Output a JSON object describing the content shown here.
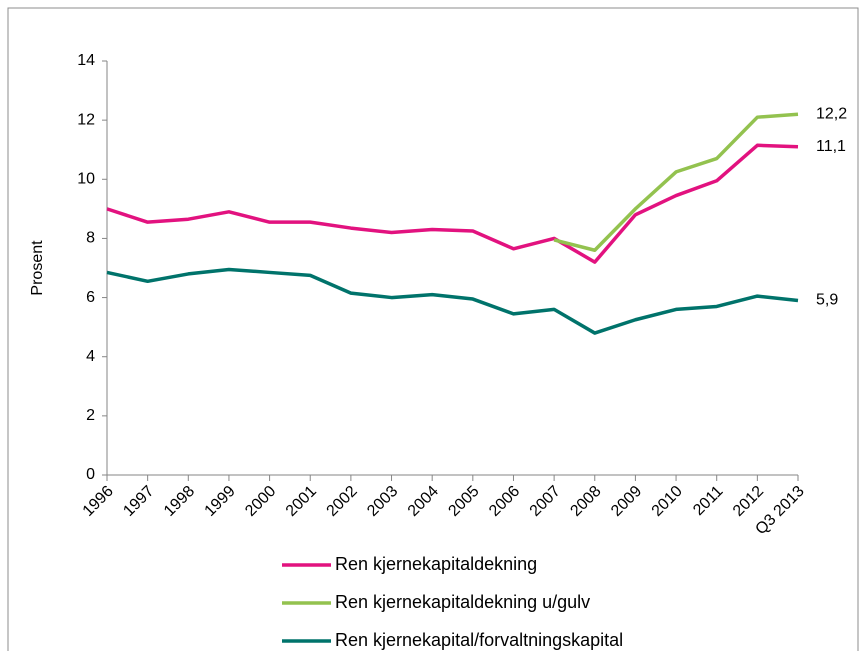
{
  "chart_data": {
    "type": "line",
    "y_label": "Prosent",
    "categories": [
      "1996",
      "1997",
      "1998",
      "1999",
      "2000",
      "2001",
      "2002",
      "2003",
      "2004",
      "2005",
      "2006",
      "2007",
      "2008",
      "2009",
      "2010",
      "2011",
      "2012",
      "Q3 2013"
    ],
    "series": [
      {
        "name": "Ren kjernekapitaldekning",
        "color": "#e2127f",
        "values": [
          9.0,
          8.55,
          8.65,
          8.9,
          8.55,
          8.55,
          8.35,
          8.2,
          8.3,
          8.25,
          7.65,
          8.0,
          7.2,
          8.8,
          9.45,
          9.95,
          11.15,
          11.1
        ],
        "value_labels": [
          null,
          null,
          null,
          null,
          null,
          null,
          null,
          null,
          null,
          null,
          null,
          null,
          null,
          null,
          null,
          null,
          null,
          "11,1"
        ]
      },
      {
        "name": "Ren kjernekapitaldekning u/gulv",
        "color": "#93c24f",
        "values": [
          null,
          null,
          null,
          null,
          null,
          null,
          null,
          null,
          null,
          null,
          null,
          7.95,
          7.6,
          9.0,
          10.25,
          10.7,
          12.1,
          12.2
        ],
        "value_labels": [
          null,
          null,
          null,
          null,
          null,
          null,
          null,
          null,
          null,
          null,
          null,
          null,
          null,
          null,
          null,
          null,
          null,
          "12,2"
        ]
      },
      {
        "name": "Ren kjernekapital/forvaltningskapital",
        "color": "#00736b",
        "values": [
          6.85,
          6.55,
          6.8,
          6.95,
          6.85,
          6.75,
          6.15,
          6.0,
          6.1,
          5.95,
          5.45,
          5.6,
          4.8,
          5.25,
          5.6,
          5.7,
          6.05,
          5.9
        ],
        "value_labels": [
          null,
          null,
          null,
          null,
          null,
          null,
          null,
          null,
          null,
          null,
          null,
          null,
          null,
          null,
          null,
          null,
          null,
          "5,9"
        ]
      }
    ],
    "ylim": [
      0,
      14
    ],
    "yticks": [
      0,
      2,
      4,
      6,
      8,
      10,
      12,
      14
    ],
    "grid": false,
    "legend": "bottom"
  }
}
